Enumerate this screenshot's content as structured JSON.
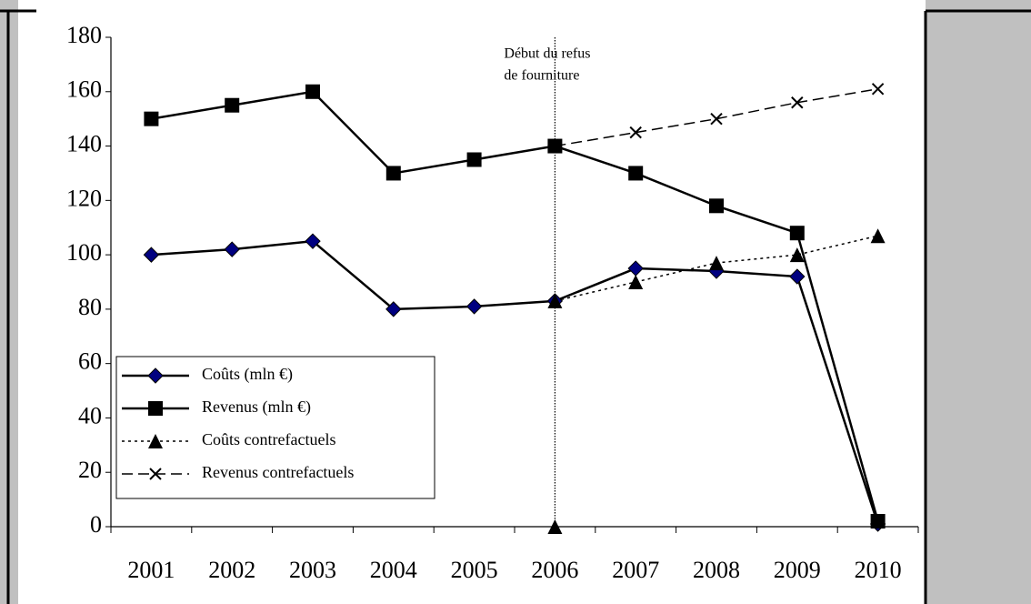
{
  "chart_data": {
    "type": "line",
    "categories": [
      "2001",
      "2002",
      "2003",
      "2004",
      "2005",
      "2006",
      "2007",
      "2008",
      "2009",
      "2010"
    ],
    "series": [
      {
        "name": "Coûts (mln €)",
        "color": "#000000",
        "marker_color": "#000080",
        "marker": "diamond",
        "dash": "solid",
        "values": [
          100,
          102,
          105,
          80,
          81,
          83,
          95,
          94,
          92,
          1
        ]
      },
      {
        "name": "Revenus (mln €)",
        "color": "#000000",
        "marker_color": "#000000",
        "marker": "square",
        "dash": "solid",
        "values": [
          150,
          155,
          160,
          130,
          135,
          140,
          130,
          118,
          108,
          2
        ]
      },
      {
        "name": "Coûts contrefactuels",
        "color": "#000000",
        "marker_color": "#000000",
        "marker": "triangle",
        "dash": "dotted",
        "values": [
          null,
          null,
          null,
          null,
          null,
          83,
          90,
          97,
          100,
          107
        ]
      },
      {
        "name": "Revenus contrefactuels",
        "color": "#000000",
        "marker_color": "#000000",
        "marker": "cross",
        "dash": "dashed",
        "values": [
          null,
          null,
          null,
          null,
          null,
          140,
          145,
          150,
          156,
          161
        ]
      }
    ],
    "ylim": [
      0,
      180
    ],
    "yticks": [
      0,
      20,
      40,
      60,
      80,
      100,
      120,
      140,
      160,
      180
    ],
    "annotation": {
      "lines": [
        "Début du refus",
        "de fourniture"
      ],
      "x": "2006",
      "value": 0
    },
    "legend": "lower left"
  }
}
